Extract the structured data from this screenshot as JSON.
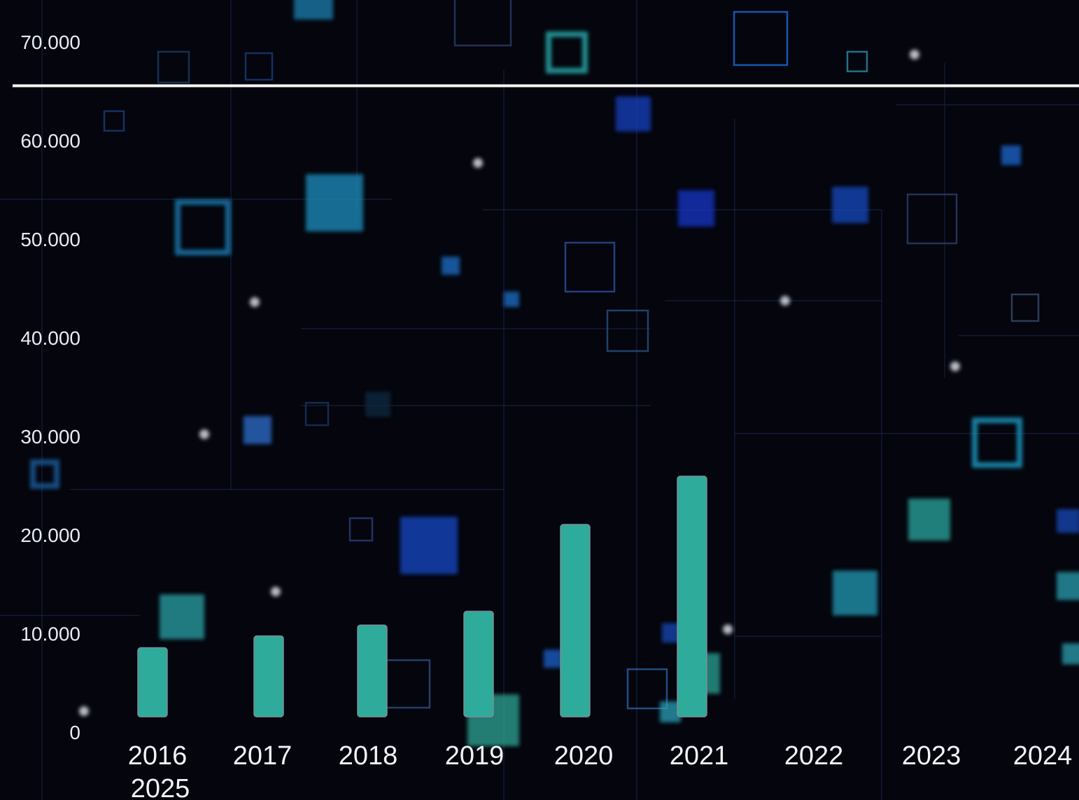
{
  "colors": {
    "background": "#04050d",
    "bar": "#2eab9b",
    "bar_outline": "#7f8d96",
    "reference_line": "#ffffff",
    "text": "#eef0f5"
  },
  "chart_data": {
    "type": "bar",
    "title": "",
    "xlabel": "",
    "ylabel": "",
    "categories": [
      "2016",
      "2017",
      "2018",
      "2019",
      "2020",
      "2021",
      "2022",
      "2023",
      "2024",
      "2025"
    ],
    "values": [
      7000,
      8200,
      9300,
      10700,
      19500,
      24400,
      null,
      null,
      null,
      null
    ],
    "ylim": [
      0,
      70000
    ],
    "yticks": [
      "0",
      "10.000",
      "20.000",
      "30.000",
      "40.000",
      "50.000",
      "60.000",
      "70.000"
    ],
    "reference_line": 64000,
    "grid": false,
    "legend": "none"
  }
}
